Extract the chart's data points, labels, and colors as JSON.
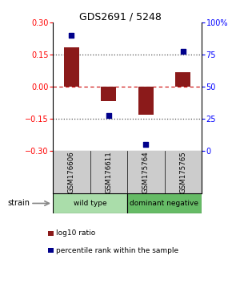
{
  "title": "GDS2691 / 5248",
  "samples": [
    "GSM176606",
    "GSM176611",
    "GSM175764",
    "GSM175765"
  ],
  "log10_ratio": [
    0.185,
    -0.065,
    -0.13,
    0.07
  ],
  "percentile_rank": [
    90,
    28,
    5,
    78
  ],
  "bar_color": "#8B1A1A",
  "dot_color": "#00008B",
  "ylim_left": [
    -0.3,
    0.3
  ],
  "ylim_right": [
    0,
    100
  ],
  "yticks_left": [
    -0.3,
    -0.15,
    0,
    0.15,
    0.3
  ],
  "yticks_right": [
    0,
    25,
    50,
    75,
    100
  ],
  "hline0_color": "#cc0000",
  "hline_color": "#555555",
  "groups": [
    {
      "label": "wild type",
      "indices": [
        0,
        1
      ],
      "color": "#aaddaa"
    },
    {
      "label": "dominant negative",
      "indices": [
        2,
        3
      ],
      "color": "#66bb66"
    }
  ],
  "strain_label": "strain",
  "legend_red_label": "log10 ratio",
  "legend_blue_label": "percentile rank within the sample",
  "background_color": "#ffffff",
  "sample_bg": "#cccccc"
}
